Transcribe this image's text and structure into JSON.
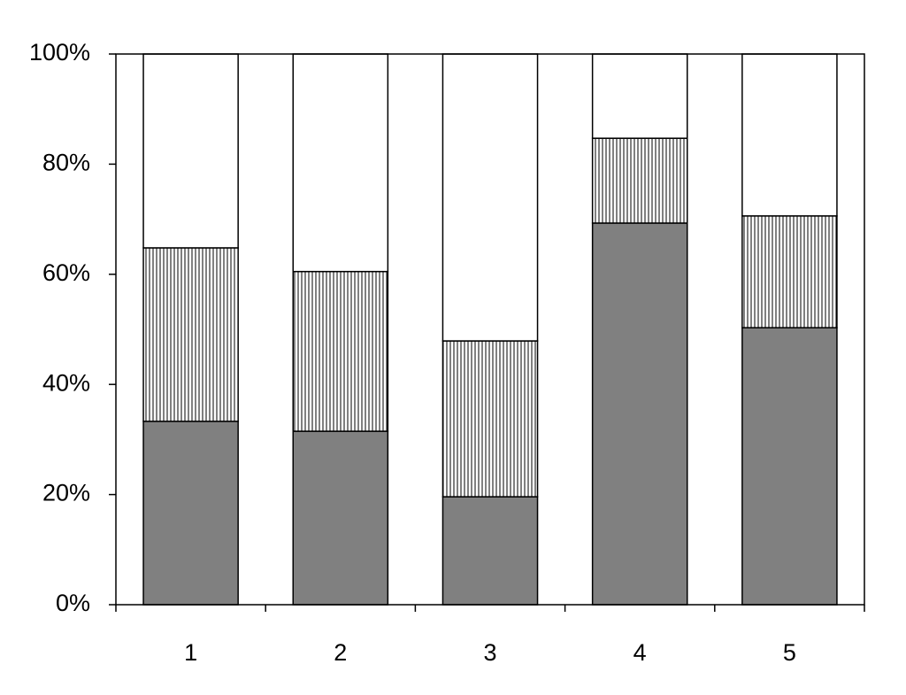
{
  "chart_data": {
    "type": "stacked_bar_100",
    "categories": [
      "1",
      "2",
      "3",
      "4",
      "5"
    ],
    "series": [
      {
        "color": "#808080",
        "values": [
          33.3,
          31.5,
          19.6,
          69.3,
          50.3
        ]
      },
      {
        "color": "#ffffff",
        "hatch": "vertical",
        "values": [
          31.5,
          29,
          28.3,
          15.4,
          20.3
        ]
      },
      {
        "color": "#ffffff",
        "values": [
          35.2,
          39.5,
          52.1,
          15.3,
          29.4
        ]
      }
    ],
    "ylim": [
      0,
      100
    ],
    "yticks": [
      {
        "value": 0,
        "label": "0%"
      },
      {
        "value": 20,
        "label": "20%"
      },
      {
        "value": 40,
        "label": "40%"
      },
      {
        "value": 60,
        "label": "60%"
      },
      {
        "value": 80,
        "label": "80%"
      },
      {
        "value": 100,
        "label": "100%"
      }
    ],
    "grid": false
  }
}
